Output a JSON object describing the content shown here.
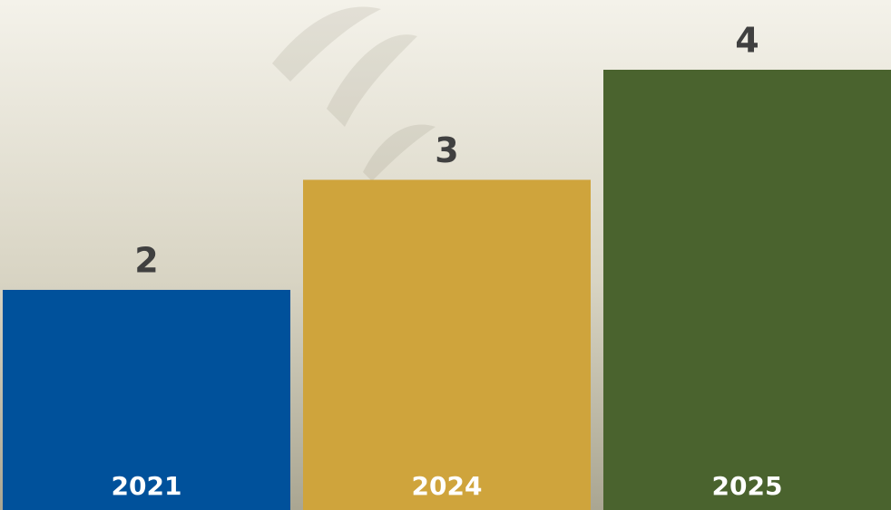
{
  "chart_data": {
    "type": "bar",
    "categories": [
      "2021",
      "2024",
      "2025"
    ],
    "values": [
      2,
      3,
      4
    ],
    "colors": [
      "#00519b",
      "#cfa43c",
      "#4a632e"
    ]
  }
}
